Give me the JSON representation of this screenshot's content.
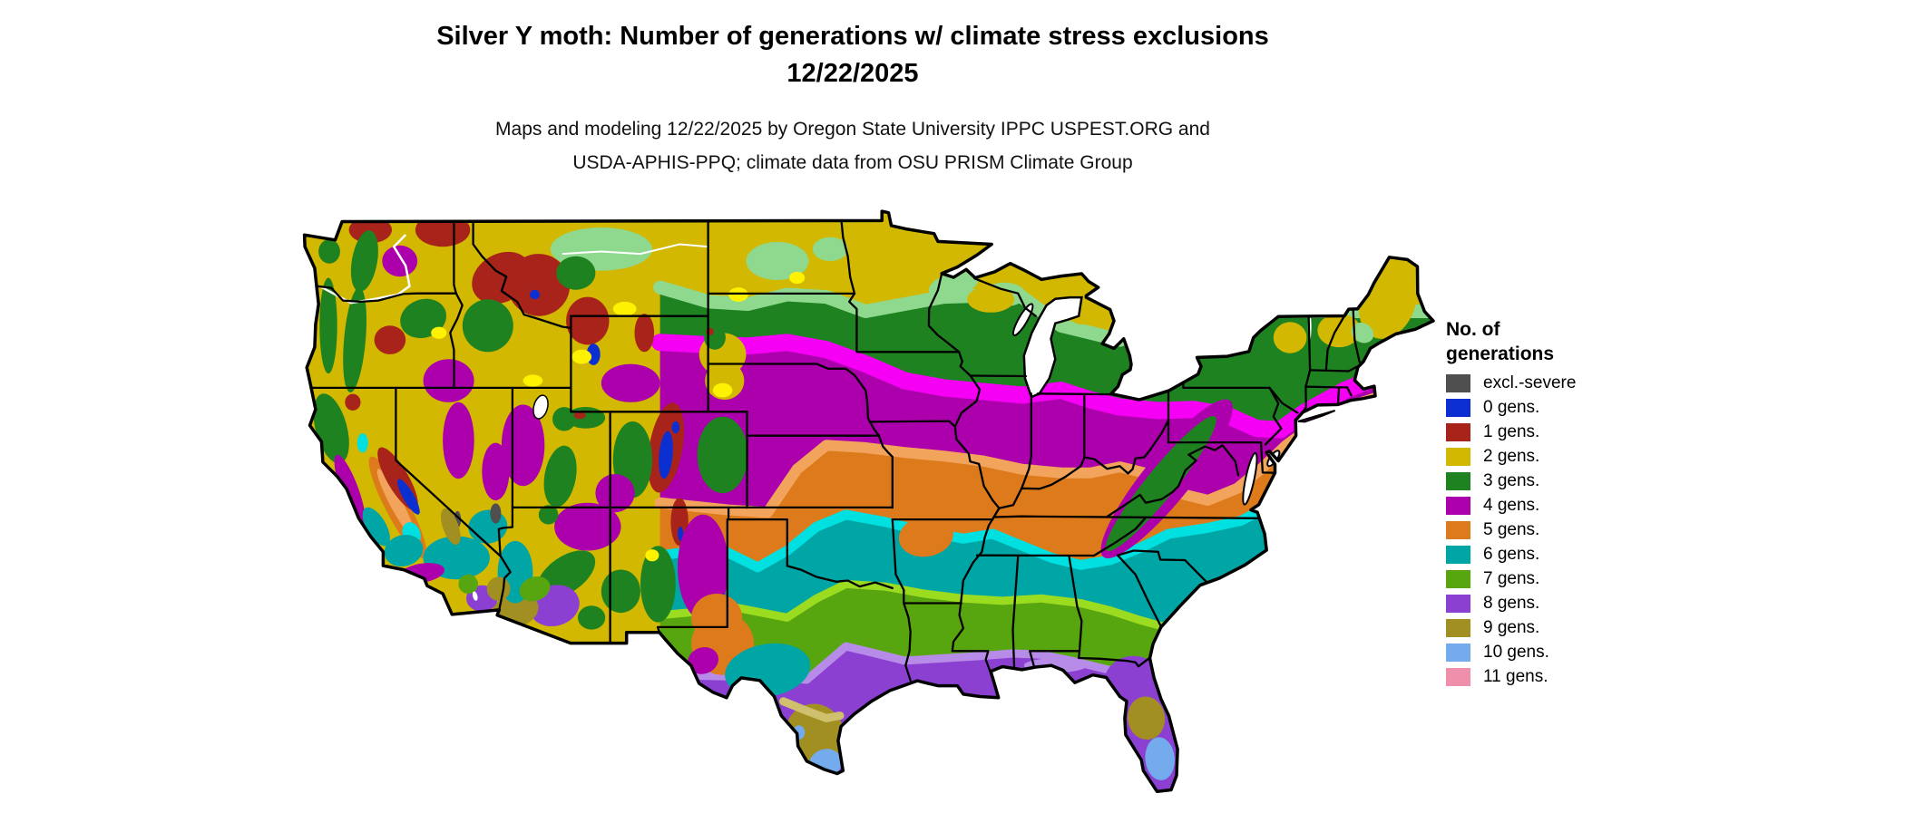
{
  "header": {
    "title_line1": "Silver Y moth: Number of generations w/ climate stress exclusions",
    "title_line2": "12/22/2025",
    "subtitle_line1": "Maps and modeling 12/22/2025 by Oregon State University IPPC USPEST.ORG and",
    "subtitle_line2": "USDA-APHIS-PPQ; climate data from OSU PRISM Climate Group"
  },
  "legend": {
    "title_line1": "No. of",
    "title_line2": "generations",
    "items": [
      {
        "key": "excl",
        "label": "excl.-severe",
        "color": "#4f4f4f"
      },
      {
        "key": "0",
        "label": "0 gens.",
        "color": "#0b2fd0"
      },
      {
        "key": "1",
        "label": "1 gens.",
        "color": "#a8241a"
      },
      {
        "key": "2",
        "label": "2 gens.",
        "color": "#d2b800"
      },
      {
        "key": "3",
        "label": "3 gens.",
        "color": "#1f8220"
      },
      {
        "key": "4",
        "label": "4 gens.",
        "color": "#ab00ab"
      },
      {
        "key": "5",
        "label": "5 gens.",
        "color": "#dd7b1c"
      },
      {
        "key": "6",
        "label": "6 gens.",
        "color": "#00a5a5"
      },
      {
        "key": "7",
        "label": "7 gens.",
        "color": "#58a60f"
      },
      {
        "key": "8",
        "label": "8 gens.",
        "color": "#8b40d2"
      },
      {
        "key": "9",
        "label": "9 gens.",
        "color": "#a28f21"
      },
      {
        "key": "10",
        "label": "10 gens.",
        "color": "#73abed"
      },
      {
        "key": "11",
        "label": "11 gens.",
        "color": "#f08fac"
      }
    ]
  },
  "map": {
    "region": "Contiguous United States",
    "background_color": "#ffffff",
    "boundary_color": "#000000",
    "water_color": "#ffffff",
    "accent_colors": {
      "bright_yellow": "#fff200",
      "light_green": "#8fd98f",
      "bright_magenta": "#f500f5",
      "light_orange": "#f2a45c",
      "cyan": "#00e0e0",
      "bright_lime": "#9bdc20",
      "light_purple": "#b78ce8",
      "tan": "#cfc06d"
    }
  }
}
